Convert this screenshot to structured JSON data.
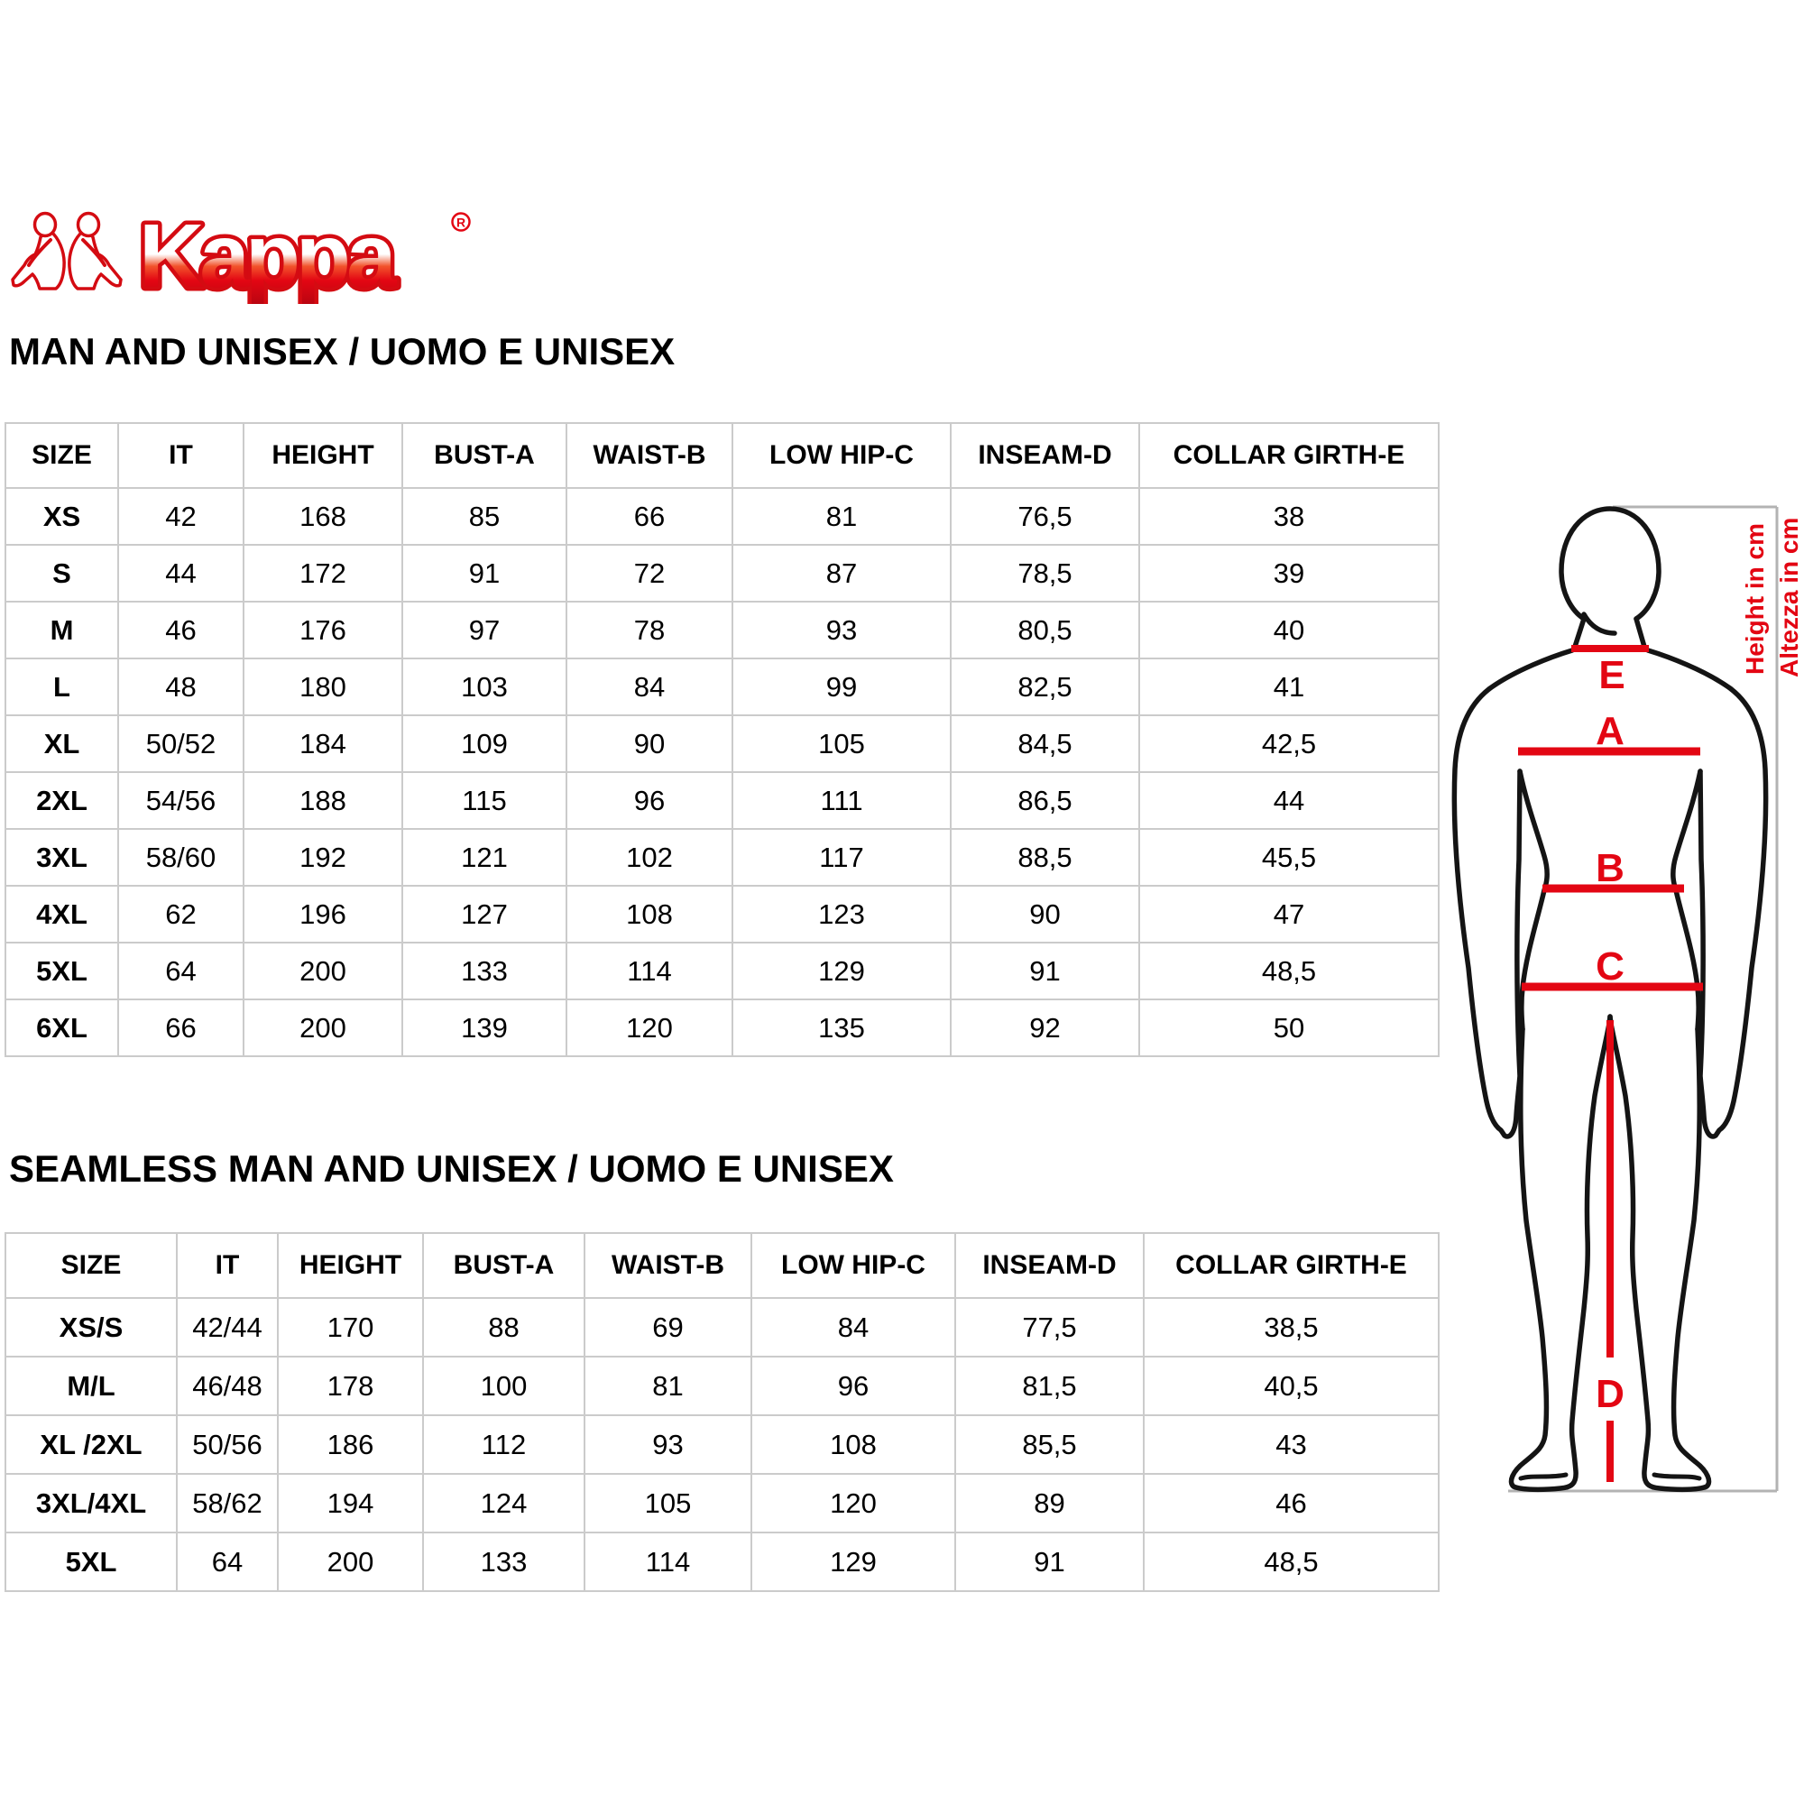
{
  "logo": {
    "brand": "Kappa",
    "registered": "R"
  },
  "accent_color": "#e30613",
  "line_gray": "#b3b3b3",
  "sections": [
    {
      "heading": "MAN AND UNISEX / UOMO E UNISEX"
    },
    {
      "heading": "SEAMLESS MAN AND UNISEX / UOMO E UNISEX"
    }
  ],
  "tables": [
    {
      "columns": [
        "SIZE",
        "IT",
        "HEIGHT",
        "BUST-A",
        "WAIST-B",
        "LOW HIP-C",
        "INSEAM-D",
        "COLLAR GIRTH-E"
      ],
      "rows": [
        [
          "XS",
          "42",
          "168",
          "85",
          "66",
          "81",
          "76,5",
          "38"
        ],
        [
          "S",
          "44",
          "172",
          "91",
          "72",
          "87",
          "78,5",
          "39"
        ],
        [
          "M",
          "46",
          "176",
          "97",
          "78",
          "93",
          "80,5",
          "40"
        ],
        [
          "L",
          "48",
          "180",
          "103",
          "84",
          "99",
          "82,5",
          "41"
        ],
        [
          "XL",
          "50/52",
          "184",
          "109",
          "90",
          "105",
          "84,5",
          "42,5"
        ],
        [
          "2XL",
          "54/56",
          "188",
          "115",
          "96",
          "111",
          "86,5",
          "44"
        ],
        [
          "3XL",
          "58/60",
          "192",
          "121",
          "102",
          "117",
          "88,5",
          "45,5"
        ],
        [
          "4XL",
          "62",
          "196",
          "127",
          "108",
          "123",
          "90",
          "47"
        ],
        [
          "5XL",
          "64",
          "200",
          "133",
          "114",
          "129",
          "91",
          "48,5"
        ],
        [
          "6XL",
          "66",
          "200",
          "139",
          "120",
          "135",
          "92",
          "50"
        ]
      ]
    },
    {
      "columns": [
        "SIZE",
        "IT",
        "HEIGHT",
        "BUST-A",
        "WAIST-B",
        "LOW HIP-C",
        "INSEAM-D",
        "COLLAR GIRTH-E"
      ],
      "rows": [
        [
          "XS/S",
          "42/44",
          "170",
          "88",
          "69",
          "84",
          "77,5",
          "38,5"
        ],
        [
          "M/L",
          "46/48",
          "178",
          "100",
          "81",
          "96",
          "81,5",
          "40,5"
        ],
        [
          "XL /2XL",
          "50/56",
          "186",
          "112",
          "93",
          "108",
          "85,5",
          "43"
        ],
        [
          "3XL/4XL",
          "58/62",
          "194",
          "124",
          "105",
          "120",
          "89",
          "46"
        ],
        [
          "5XL",
          "64",
          "200",
          "133",
          "114",
          "129",
          "91",
          "48,5"
        ]
      ]
    }
  ],
  "diagram": {
    "labels": {
      "E": "E",
      "A": "A",
      "B": "B",
      "C": "C",
      "D": "D"
    },
    "height_note_en": "Height in cm",
    "height_note_it": "Altezza in cm"
  }
}
